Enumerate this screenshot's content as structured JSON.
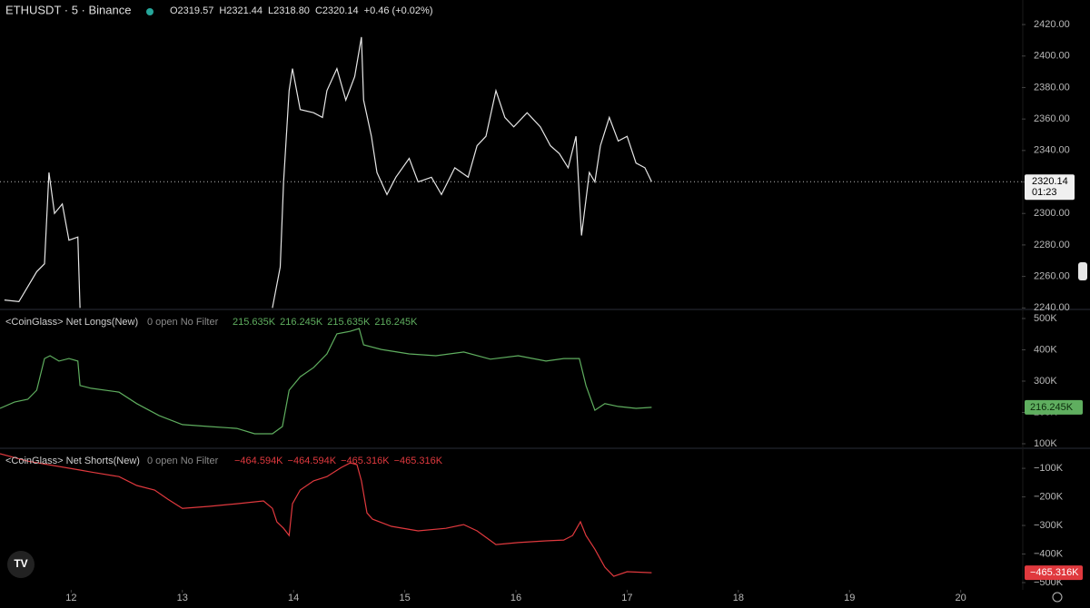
{
  "chart_data": [
    {
      "type": "line",
      "title": "ETHUSDT · 5 · Binance",
      "stats": [
        "O2319.57",
        "H2321.44",
        "L2318.80",
        "C2320.14",
        "+0.46 (+0.02%)"
      ],
      "x": [
        11.4,
        11.53,
        11.69,
        11.76,
        11.8,
        11.85,
        11.92,
        11.98,
        12.06,
        12.08,
        null,
        13.81,
        13.88,
        13.91,
        13.96,
        13.99,
        14.06,
        14.18,
        14.26,
        14.3,
        14.39,
        14.47,
        14.55,
        14.61,
        14.63,
        14.7,
        14.75,
        14.84,
        14.92,
        15.04,
        15.12,
        15.24,
        15.33,
        15.45,
        15.57,
        15.65,
        15.73,
        15.82,
        15.9,
        15.98,
        16.1,
        16.22,
        16.31,
        16.39,
        16.47,
        16.54,
        16.59,
        16.66,
        16.71,
        16.76,
        16.84,
        16.92,
        17.0,
        17.08,
        17.16,
        17.22
      ],
      "series": [
        {
          "name": "ETHUSDT",
          "color": "#e6e6e6",
          "values": [
            2245,
            2244,
            2263,
            2268,
            2326,
            2300,
            2306,
            2283,
            2285,
            2240,
            null,
            2240,
            2266,
            2320,
            2378,
            2392,
            2366,
            2364,
            2361,
            2378,
            2392,
            2372,
            2387,
            2412,
            2372,
            2349,
            2326,
            2312,
            2323,
            2335,
            2320,
            2323,
            2312,
            2329,
            2323,
            2343,
            2349,
            2378,
            2361,
            2355,
            2364,
            2355,
            2343,
            2338,
            2329,
            2349,
            2286,
            2326,
            2320,
            2343,
            2361,
            2346,
            2349,
            2332,
            2329,
            2320.14
          ]
        }
      ],
      "last_price": 2320.14,
      "last_timer": "01:23",
      "xlim": [
        11.36,
        20.55
      ],
      "ylim": [
        2239.6,
        2435.6
      ],
      "yticks": [
        {
          "value": 2240,
          "label": "2240.00"
        },
        {
          "value": 2260,
          "label": "2260.00"
        },
        {
          "value": 2280,
          "label": "2280.00"
        },
        {
          "value": 2300,
          "label": "2300.00"
        },
        {
          "value": 2320,
          "label": "2320.00"
        },
        {
          "value": 2340,
          "label": "2340.00"
        },
        {
          "value": 2360,
          "label": "2360.00"
        },
        {
          "value": 2380,
          "label": "2380.00"
        },
        {
          "value": 2400,
          "label": "2400.00"
        },
        {
          "value": 2420,
          "label": "2420.00"
        }
      ]
    },
    {
      "type": "line",
      "title": "<CoinGlass> Net Longs(New)",
      "subtitle": "0 open No Filter",
      "legend_values": [
        "215.635K",
        "216.245K",
        "215.635K",
        "216.245K"
      ],
      "x": [
        11.36,
        11.49,
        11.61,
        11.69,
        11.76,
        11.81,
        11.89,
        11.98,
        12.06,
        12.08,
        12.18,
        12.43,
        12.59,
        12.79,
        13.0,
        13.24,
        13.49,
        13.65,
        13.81,
        13.9,
        13.96,
        14.06,
        14.18,
        14.3,
        14.39,
        14.51,
        14.59,
        14.63,
        14.79,
        15.04,
        15.28,
        15.53,
        15.77,
        16.02,
        16.27,
        16.43,
        16.57,
        16.63,
        16.71,
        16.8,
        16.92,
        17.08,
        17.22
      ],
      "series": [
        {
          "name": "Net Longs",
          "color": "#5fae5f",
          "values": [
            213000,
            233000,
            242000,
            271000,
            372000,
            381000,
            364000,
            372000,
            364000,
            286000,
            277000,
            265000,
            228000,
            190000,
            161000,
            155000,
            149000,
            132000,
            132000,
            155000,
            271000,
            314000,
            343000,
            387000,
            451000,
            459000,
            468000,
            416000,
            401000,
            387000,
            381000,
            393000,
            370000,
            381000,
            364000,
            372000,
            372000,
            286000,
            207000,
            228000,
            219000,
            213000,
            216245
          ]
        }
      ],
      "last_label": "216.245K",
      "xlim": [
        11.36,
        20.55
      ],
      "ylim": [
        85500,
        526000
      ],
      "yticks": [
        {
          "value": 100000,
          "label": "100K"
        },
        {
          "value": 200000,
          "label": "200K"
        },
        {
          "value": 300000,
          "label": "300K"
        },
        {
          "value": 400000,
          "label": "400K"
        },
        {
          "value": 500000,
          "label": "500K"
        }
      ]
    },
    {
      "type": "line",
      "title": "<CoinGlass> Net Shorts(New)",
      "subtitle": "0 open No Filter",
      "legend_values": [
        "−464.594K",
        "−464.594K",
        "−465.316K",
        "−465.316K"
      ],
      "x": [
        11.36,
        11.61,
        12.08,
        12.18,
        12.43,
        12.59,
        12.75,
        12.87,
        13.0,
        13.24,
        13.49,
        13.73,
        13.81,
        13.85,
        13.91,
        13.96,
        13.99,
        14.06,
        14.18,
        14.3,
        14.43,
        14.51,
        14.57,
        14.61,
        14.66,
        14.71,
        14.88,
        15.12,
        15.37,
        15.53,
        15.65,
        15.82,
        16.02,
        16.27,
        16.43,
        16.51,
        16.58,
        16.63,
        16.71,
        16.8,
        16.88,
        17.0,
        17.22
      ],
      "series": [
        {
          "name": "Net Shorts",
          "color": "#e0393e",
          "values": [
            -49000,
            -75000,
            -106000,
            -113000,
            -129000,
            -160000,
            -176000,
            -208000,
            -240000,
            -233000,
            -224000,
            -214000,
            -240000,
            -287000,
            -310000,
            -335000,
            -224000,
            -176000,
            -144000,
            -129000,
            -97000,
            -81000,
            -87000,
            -144000,
            -256000,
            -278000,
            -303000,
            -319000,
            -310000,
            -297000,
            -319000,
            -367000,
            -360000,
            -354000,
            -351000,
            -335000,
            -287000,
            -335000,
            -383000,
            -446000,
            -478000,
            -462000,
            -465316
          ]
        }
      ],
      "last_label": "−465.316K",
      "xlim": [
        11.36,
        20.55
      ],
      "ylim": [
        -525400,
        -33000
      ],
      "xticks": [
        12,
        13,
        14,
        15,
        16,
        17,
        18,
        19,
        20
      ],
      "yticks": [
        {
          "value": -500000,
          "label": "−500K"
        },
        {
          "value": -400000,
          "label": "−400K"
        },
        {
          "value": -300000,
          "label": "−300K"
        },
        {
          "value": -200000,
          "label": "−200K"
        },
        {
          "value": -100000,
          "label": "−100K"
        }
      ]
    }
  ]
}
